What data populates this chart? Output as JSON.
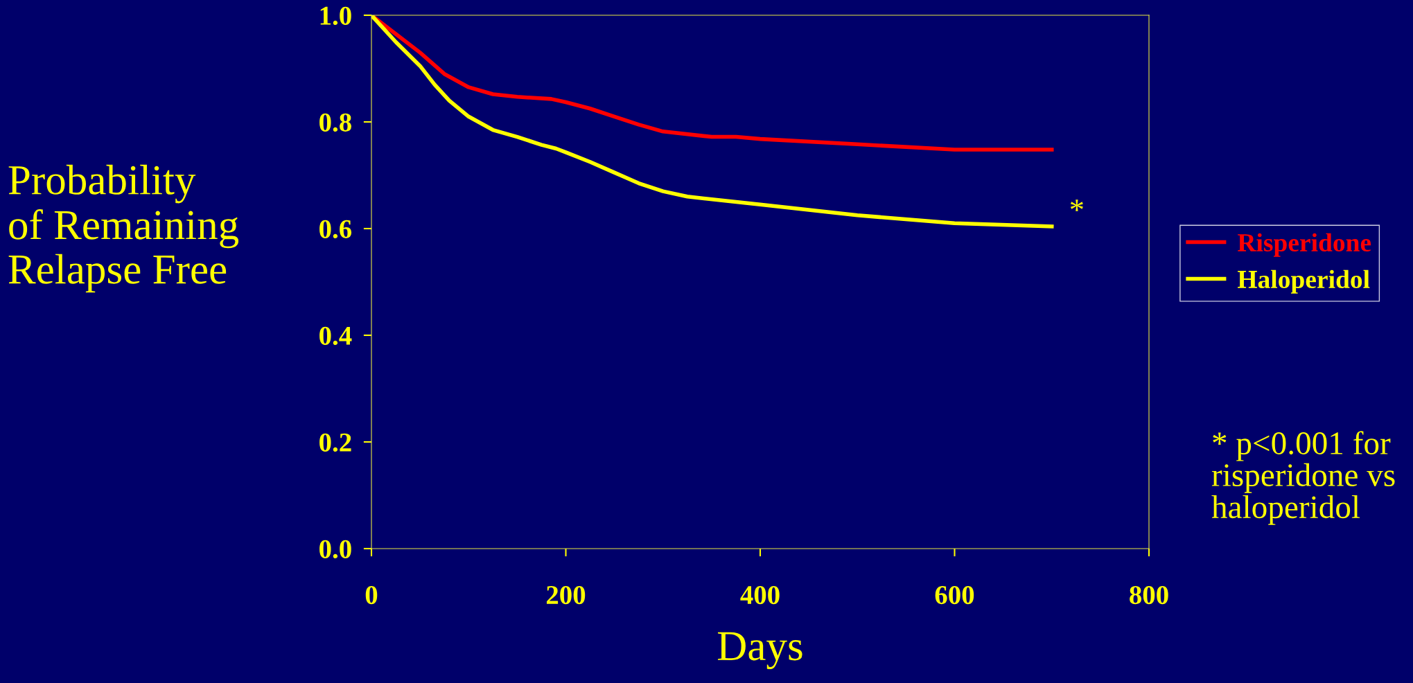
{
  "chart_data": {
    "type": "line",
    "xlabel": "Days",
    "ylabel": "Probability\nof Remaining\nRelapse Free",
    "xlim": [
      0,
      800
    ],
    "xticks": [
      0,
      200,
      400,
      600,
      800
    ],
    "ylim": [
      0,
      1.0
    ],
    "yticks": [
      {
        "value": 0,
        "label": "0.0"
      },
      {
        "value": 0.2,
        "label": "0.2"
      },
      {
        "value": 0.4,
        "label": "0.4"
      },
      {
        "value": 0.6,
        "label": "0.6"
      },
      {
        "value": 0.8,
        "label": "0.8"
      },
      {
        "value": 1.0,
        "label": "1.0"
      }
    ],
    "grid": false,
    "legend": "right",
    "marker": "none",
    "line_style": "solid",
    "series": [
      {
        "name": "Risperidone",
        "color": "#ff0000",
        "x": [
          0,
          25,
          50,
          75,
          100,
          125,
          150,
          185,
          200,
          225,
          250,
          275,
          300,
          350,
          375,
          400,
          500,
          600,
          700
        ],
        "values": [
          1.0,
          0.965,
          0.93,
          0.89,
          0.865,
          0.852,
          0.847,
          0.843,
          0.837,
          0.825,
          0.81,
          0.795,
          0.782,
          0.772,
          0.772,
          0.768,
          0.758,
          0.748,
          0.748
        ]
      },
      {
        "name": "Haloperidol",
        "color": "#ffff00",
        "x": [
          0,
          25,
          50,
          65,
          80,
          100,
          125,
          150,
          175,
          190,
          200,
          225,
          250,
          275,
          300,
          325,
          400,
          500,
          600,
          700
        ],
        "values": [
          1.0,
          0.95,
          0.905,
          0.87,
          0.84,
          0.81,
          0.785,
          0.772,
          0.757,
          0.75,
          0.743,
          0.725,
          0.705,
          0.685,
          0.67,
          0.66,
          0.645,
          0.625,
          0.61,
          0.604
        ]
      }
    ],
    "annotations": [
      {
        "text": "*",
        "x": 700,
        "y": 0.604
      },
      "* p<0.001 for\nrisperidone vs\nhaloperidol"
    ]
  }
}
